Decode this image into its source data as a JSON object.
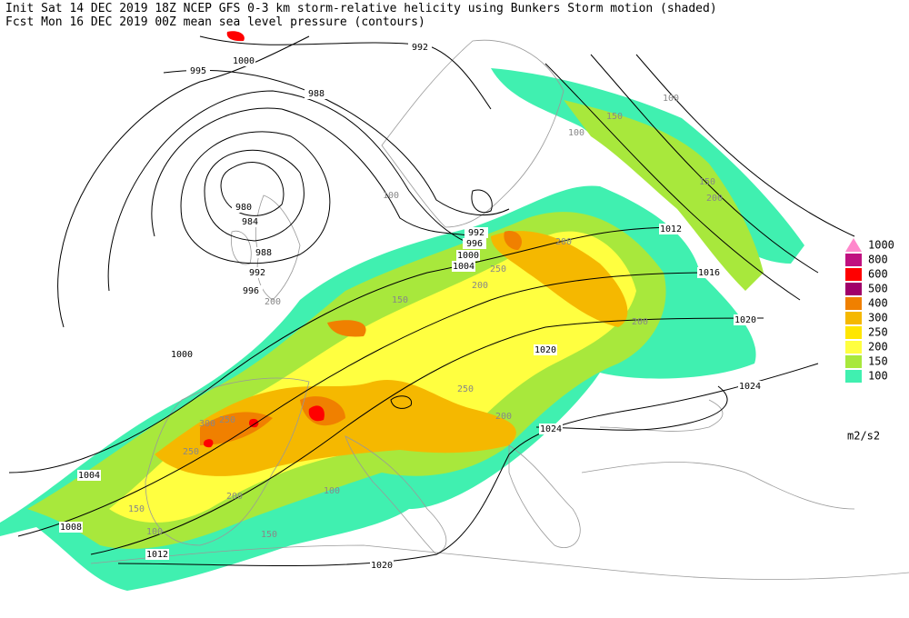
{
  "header": {
    "line1": "Init  Sat 14 DEC 2019 18Z   NCEP GFS 0-3 km storm-relative helicity using Bunkers Storm motion (shaded)",
    "line2": "Fcst Mon 16 DEC 2019 00Z   mean sea level pressure (contours)"
  },
  "legend": {
    "items": [
      {
        "value": 1000,
        "color": "#ff88cc"
      },
      {
        "value": 800,
        "color": "#c01080"
      },
      {
        "value": 600,
        "color": "#ff0000"
      },
      {
        "value": 500,
        "color": "#a0006a"
      },
      {
        "value": 400,
        "color": "#f08000"
      },
      {
        "value": 300,
        "color": "#f5b800"
      },
      {
        "value": 250,
        "color": "#ffe600"
      },
      {
        "value": 200,
        "color": "#ffff40"
      },
      {
        "value": 150,
        "color": "#a8e83c"
      },
      {
        "value": 100,
        "color": "#40f0b0"
      }
    ],
    "unit": "m2/s2"
  },
  "isobar_labels": [
    992,
    995,
    1000,
    988,
    980,
    984,
    988,
    992,
    996,
    1000,
    1004,
    1008,
    1012,
    1020,
    992,
    996,
    1000,
    1004,
    1012,
    1016,
    1020,
    1024,
    1020,
    1024
  ],
  "helicity_labels": [
    100,
    150,
    150,
    200,
    100,
    200,
    250,
    200,
    150,
    200,
    250,
    300,
    250,
    200,
    150,
    100,
    250,
    200,
    100,
    150,
    200,
    100
  ]
}
